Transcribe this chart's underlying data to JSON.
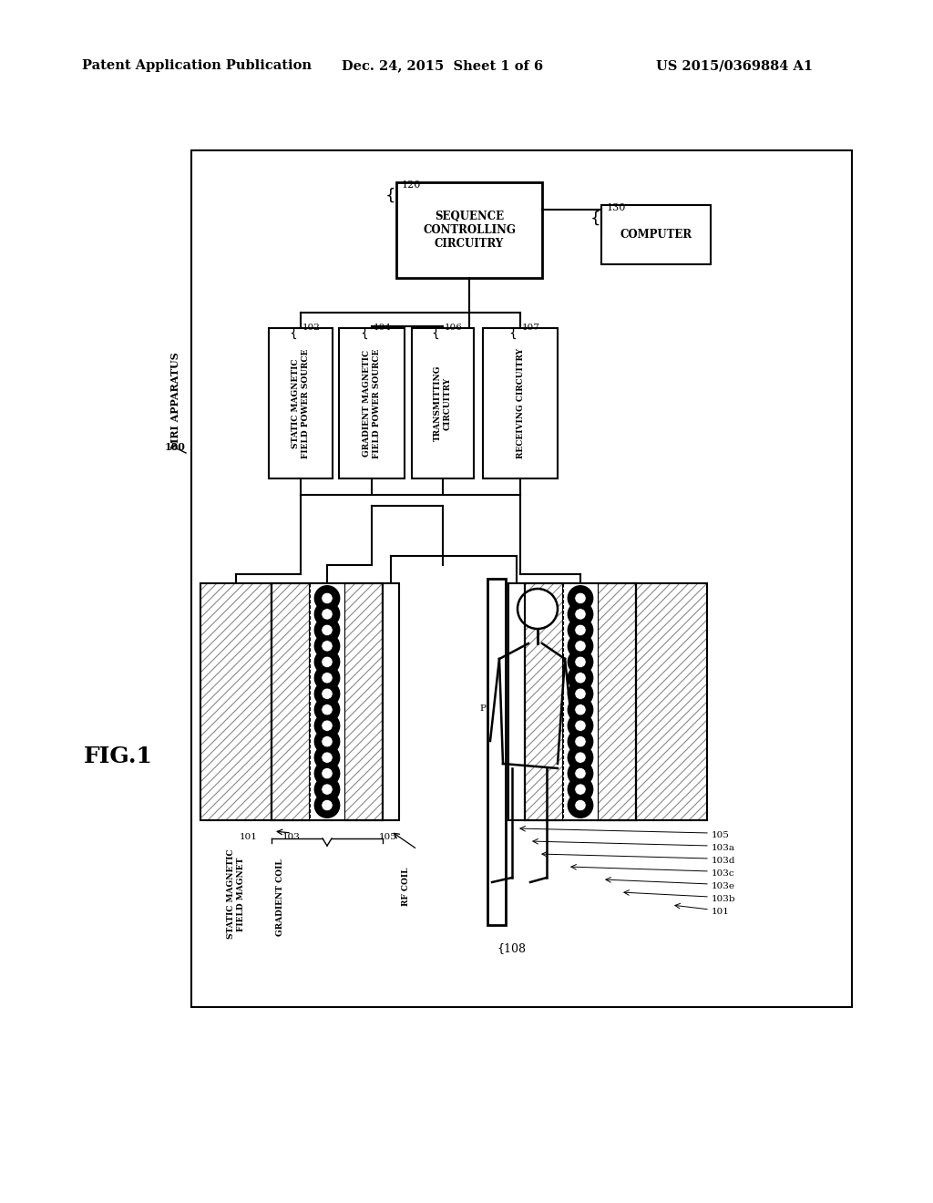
{
  "bg_color": "#ffffff",
  "header_left": "Patent Application Publication",
  "header_mid": "Dec. 24, 2015  Sheet 1 of 6",
  "header_right": "US 2015/0369884 A1",
  "fig_label": "FIG.1",
  "mri_label": "MRI APPARATUS",
  "mri_num": "100",
  "seq_label": "SEQUENCE\nCONTROLLING\nCIRCUITRY",
  "seq_num": "120",
  "comp_label": "COMPUTER",
  "comp_num": "130",
  "sub_boxes": [
    {
      "label": "STATIC MAGNETIC\nFIELD POWER SOURCE",
      "num": "102"
    },
    {
      "label": "GRADIENT MAGNETIC\nFIELD POWER SOURCE",
      "num": "104"
    },
    {
      "label": "TRANSMITTING\nCIRCUITRY",
      "num": "106"
    },
    {
      "label": "RECEIVING CIRCUITRY",
      "num": "107"
    }
  ],
  "static_label": "STATIC MAGNETIC\nFIELD MAGNET",
  "static_num": "101",
  "grad_label": "GRADIENT COIL",
  "grad_num": "103",
  "rf_label": "RF COIL",
  "rf_num": "105",
  "right_labels": [
    "105",
    "103a",
    "103d",
    "103c",
    "103e",
    "103b",
    "101"
  ],
  "label_p": "P",
  "label_108": "108",
  "n_circles": 14
}
